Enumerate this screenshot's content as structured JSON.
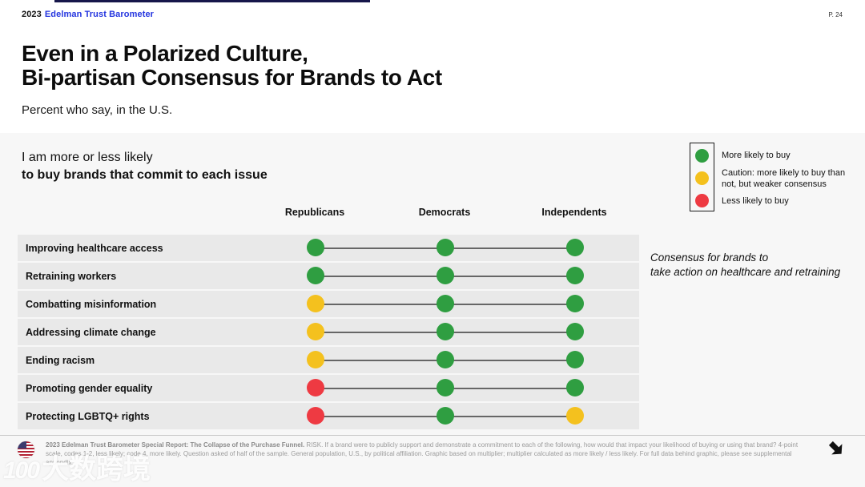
{
  "meta": {
    "brand_year": "2023",
    "brand_name": "Edelman Trust Barometer",
    "page_number": "P. 24"
  },
  "title": {
    "line1": "Even in a Polarized Culture,",
    "line2": "Bi-partisan Consensus for Brands to Act",
    "subtitle": "Percent who say, in the U.S."
  },
  "panel": {
    "question_line1": "I am more or less likely",
    "question_line2": "to buy brands that commit to each issue",
    "columns": [
      "Republicans",
      "Democrats",
      "Independents"
    ],
    "rows": [
      {
        "label": "Improving healthcare access",
        "values": [
          "green",
          "green",
          "green"
        ]
      },
      {
        "label": "Retraining workers",
        "values": [
          "green",
          "green",
          "green"
        ]
      },
      {
        "label": "Combatting misinformation",
        "values": [
          "yellow",
          "green",
          "green"
        ]
      },
      {
        "label": "Addressing climate change",
        "values": [
          "yellow",
          "green",
          "green"
        ]
      },
      {
        "label": "Ending racism",
        "values": [
          "yellow",
          "green",
          "green"
        ]
      },
      {
        "label": "Promoting gender equality",
        "values": [
          "red",
          "green",
          "green"
        ]
      },
      {
        "label": "Protecting LGBTQ+ rights",
        "values": [
          "red",
          "green",
          "yellow"
        ]
      }
    ],
    "annotation_line1": "Consensus for brands to",
    "annotation_line2": "take action on healthcare and retraining"
  },
  "legend": {
    "items": [
      {
        "color_key": "green",
        "label": "More likely to buy"
      },
      {
        "color_key": "yellow",
        "label": "Caution: more likely to buy than not, but weaker consensus"
      },
      {
        "color_key": "red",
        "label": "Less likely to buy"
      }
    ]
  },
  "colors": {
    "green": "#2f9e41",
    "yellow": "#f4c11e",
    "red": "#ee3a42",
    "accent_blue": "#2334df",
    "panel_bg": "#f7f7f7",
    "row_band": "#e9e9e9"
  },
  "footer": {
    "source_bold": "2023 Edelman Trust Barometer Special Report: The Collapse of the Purchase Funnel.",
    "source_text": " RISK. If a brand were to publicly support and demonstrate a commitment to each of the following, how would that impact your likelihood of buying or using that brand? 4-point scale, codes 1-2, less likely; code 4, more likely. Question asked of half of the sample. General population, U.S., by political affiliation. Graphic based on multiplier; multiplier calculated as more likely / less likely. For full data behind graphic, please see supplemental appendix."
  },
  "watermark": {
    "logo": "100",
    "text": "大数跨境"
  },
  "chart_data": {
    "type": "table",
    "title": "I am more or less likely to buy brands that commit to each issue",
    "subtitle": "Percent who say, in the U.S.",
    "categories": [
      "Improving healthcare access",
      "Retraining workers",
      "Combatting misinformation",
      "Addressing climate change",
      "Ending racism",
      "Promoting gender equality",
      "Protecting LGBTQ+ rights"
    ],
    "series": [
      {
        "name": "Republicans",
        "values": [
          "green",
          "green",
          "yellow",
          "yellow",
          "yellow",
          "red",
          "red"
        ]
      },
      {
        "name": "Democrats",
        "values": [
          "green",
          "green",
          "green",
          "green",
          "green",
          "green",
          "green"
        ]
      },
      {
        "name": "Independents",
        "values": [
          "green",
          "green",
          "green",
          "green",
          "green",
          "green",
          "yellow"
        ]
      }
    ],
    "value_legend": {
      "green": "More likely to buy",
      "yellow": "Caution: more likely to buy than not, but weaker consensus",
      "red": "Less likely to buy"
    },
    "annotation": "Consensus for brands to take action on healthcare and retraining",
    "legend_position": "top-right",
    "grid": false
  }
}
